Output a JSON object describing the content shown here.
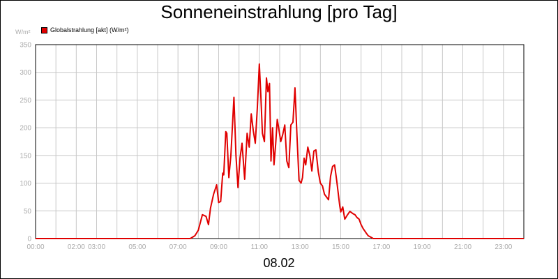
{
  "chart_data": {
    "type": "line",
    "title": "Sonneneinstrahlung [pro Tag]",
    "ylabel": "W/m²",
    "xlabel": "08.02",
    "ylim": [
      0,
      350
    ],
    "xlim": [
      0,
      24
    ],
    "y_ticks": [
      "0",
      "50",
      "100",
      "150",
      "200",
      "250",
      "300",
      "350"
    ],
    "x_ticks": [
      "00:00",
      "02:00",
      "03:00",
      "05:00",
      "07:00",
      "09:00",
      "11:00",
      "13:00",
      "15:00",
      "17:00",
      "19:00",
      "21:00",
      "23:00"
    ],
    "grid": true,
    "legend_position": "top-left",
    "colors": {
      "line": "#e00000",
      "grid": "#c8c8c8",
      "tick_text": "#aaaaaa"
    },
    "series": [
      {
        "name": "Globalstrahlung [akt] (W/m²)",
        "x": [
          0,
          7.6,
          7.83,
          8.0,
          8.2,
          8.38,
          8.5,
          8.6,
          8.75,
          8.9,
          9.0,
          9.1,
          9.2,
          9.25,
          9.35,
          9.4,
          9.5,
          9.6,
          9.75,
          9.85,
          9.95,
          10.05,
          10.15,
          10.28,
          10.4,
          10.5,
          10.6,
          10.7,
          10.8,
          10.9,
          11.0,
          11.07,
          11.15,
          11.25,
          11.35,
          11.42,
          11.5,
          11.57,
          11.65,
          11.72,
          11.8,
          11.88,
          11.95,
          12.05,
          12.15,
          12.25,
          12.35,
          12.45,
          12.55,
          12.65,
          12.75,
          12.85,
          12.95,
          13.05,
          13.12,
          13.2,
          13.28,
          13.38,
          13.48,
          13.58,
          13.68,
          13.78,
          13.9,
          14.0,
          14.1,
          14.2,
          14.3,
          14.4,
          14.5,
          14.6,
          14.7,
          14.8,
          14.95,
          15.0,
          15.1,
          15.2,
          15.32,
          15.45,
          15.6,
          15.7,
          15.8,
          15.9,
          16.0,
          16.1,
          16.25,
          16.35,
          16.5,
          16.6,
          16.75,
          16.9,
          17.0,
          17.2,
          17.5,
          24
        ],
        "values": [
          0,
          0,
          5,
          15,
          43,
          40,
          25,
          55,
          80,
          97,
          65,
          67,
          118,
          115,
          193,
          190,
          110,
          150,
          255,
          150,
          92,
          145,
          172,
          107,
          190,
          165,
          225,
          195,
          172,
          235,
          315,
          260,
          190,
          175,
          290,
          265,
          280,
          140,
          200,
          133,
          170,
          215,
          200,
          175,
          188,
          205,
          140,
          128,
          205,
          210,
          272,
          185,
          105,
          100,
          110,
          145,
          133,
          165,
          150,
          122,
          158,
          160,
          120,
          100,
          95,
          80,
          75,
          70,
          112,
          130,
          133,
          105,
          60,
          48,
          57,
          35,
          42,
          49,
          45,
          43,
          38,
          35,
          25,
          18,
          10,
          5,
          2,
          0,
          0,
          0,
          0,
          0,
          0,
          0
        ]
      }
    ]
  }
}
